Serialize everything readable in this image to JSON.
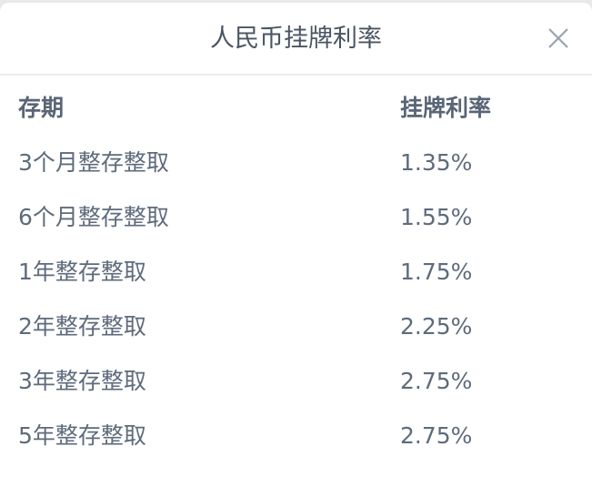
{
  "dialog": {
    "title": "人民币挂牌利率",
    "close_icon": "close-icon"
  },
  "table": {
    "headers": [
      "存期",
      "挂牌利率"
    ],
    "rows": [
      [
        "3个月整存整取",
        "1.35%"
      ],
      [
        "6个月整存整取",
        "1.55%"
      ],
      [
        "1年整存整取",
        "1.75%"
      ],
      [
        "2年整存整取",
        "2.25%"
      ],
      [
        "3年整存整取",
        "2.75%"
      ],
      [
        "5年整存整取",
        "2.75%"
      ]
    ]
  },
  "colors": {
    "text": "#5e6b7b",
    "title": "#4a5563",
    "divider": "#ececee"
  }
}
